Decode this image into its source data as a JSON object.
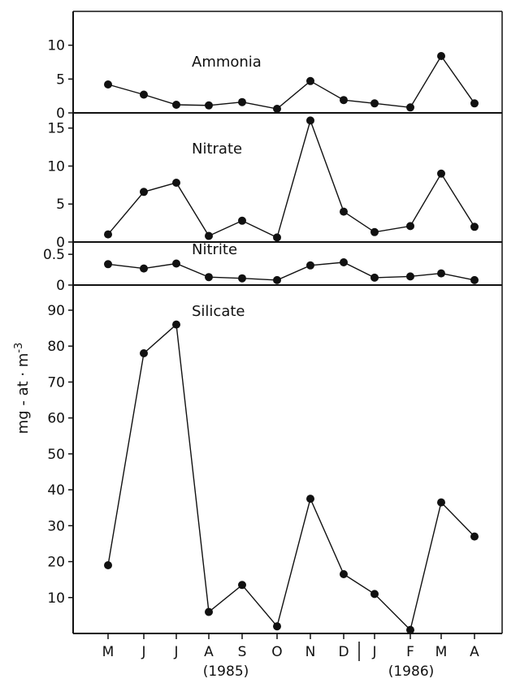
{
  "chart_data": [
    {
      "type": "line",
      "title": "Ammonia",
      "categories": [
        "M",
        "J",
        "J",
        "A",
        "S",
        "O",
        "N",
        "D",
        "J",
        "F",
        "M",
        "A"
      ],
      "values": [
        4.2,
        2.7,
        1.2,
        1.1,
        1.6,
        0.6,
        4.7,
        1.9,
        1.4,
        0.8,
        8.4,
        1.4
      ],
      "ylim": [
        0,
        15
      ],
      "yticks": [
        "0",
        "5",
        "10"
      ]
    },
    {
      "type": "line",
      "title": "Nitrate",
      "categories": [
        "M",
        "J",
        "J",
        "A",
        "S",
        "O",
        "N",
        "D",
        "J",
        "F",
        "M",
        "A"
      ],
      "values": [
        1.0,
        6.6,
        7.8,
        0.8,
        2.8,
        0.6,
        16.0,
        4.0,
        1.3,
        2.1,
        9.0,
        2.0
      ],
      "ylim": [
        0,
        17
      ],
      "yticks": [
        "0",
        "5",
        "10",
        "15"
      ]
    },
    {
      "type": "line",
      "title": "Nitrite",
      "categories": [
        "M",
        "J",
        "J",
        "A",
        "S",
        "O",
        "N",
        "D",
        "J",
        "F",
        "M",
        "A"
      ],
      "values": [
        0.34,
        0.27,
        0.35,
        0.13,
        0.11,
        0.08,
        0.32,
        0.37,
        0.12,
        0.14,
        0.19,
        0.08
      ],
      "ylim": [
        0,
        0.7
      ],
      "yticks": [
        "0",
        "0.5"
      ]
    },
    {
      "type": "line",
      "title": "Silicate",
      "categories": [
        "M",
        "J",
        "J",
        "A",
        "S",
        "O",
        "N",
        "D",
        "J",
        "F",
        "M",
        "A"
      ],
      "values": [
        19,
        78,
        86,
        6,
        13.5,
        2,
        37.5,
        16.5,
        11,
        1,
        36.5,
        27
      ],
      "ylim": [
        0,
        97
      ],
      "yticks": [
        "10",
        "20",
        "30",
        "40",
        "50",
        "60",
        "70",
        "80",
        "90"
      ]
    }
  ],
  "axis": {
    "ylabel": "mg - at · m-3",
    "ylabel_main": "mg - at · m",
    "ylabel_exp": "-3",
    "months": [
      "M",
      "J",
      "J",
      "A",
      "S",
      "O",
      "N",
      "D",
      "J",
      "F",
      "M",
      "A"
    ],
    "year_1985": "(1985)",
    "year_1986": "(1986)"
  }
}
